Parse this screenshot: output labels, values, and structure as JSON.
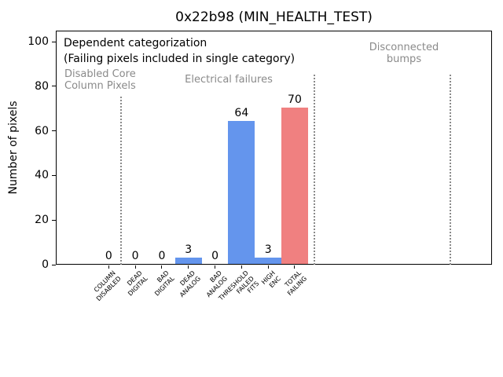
{
  "chart_data": {
    "type": "bar",
    "title": "0x22b98 (MIN_HEALTH_TEST)",
    "ylabel": "Number of pixels",
    "xlabel": "",
    "ylim": [
      0,
      105
    ],
    "yticks": [
      0,
      20,
      40,
      60,
      80,
      100
    ],
    "grid": false,
    "legend_position": "none",
    "categories": [
      "COLUMN\nDISABLED",
      "DEAD\nDIGITAL",
      "BAD\nDIGITAL",
      "DEAD\nANALOG",
      "BAD\nANALOG",
      "THRESHOLD\nFAILED\nFITS",
      "HIGH\nENC",
      "TOTAL\nFAILING"
    ],
    "values": [
      0,
      0,
      0,
      3,
      0,
      64,
      3,
      70
    ],
    "bar_labels": [
      "0",
      "0",
      "0",
      "3",
      "0",
      "64",
      "3",
      "70"
    ],
    "bar_colors": [
      "#6495ed",
      "#6495ed",
      "#6495ed",
      "#6495ed",
      "#6495ed",
      "#6495ed",
      "#6495ed",
      "#f08080"
    ],
    "annotations": {
      "heading": "Dependent categorization\n(Failing pixels included in single category)",
      "region_disabled_core": "Disabled Core\nColumn Pixels",
      "region_electrical": "Electrical failures",
      "region_disconnected": "Disconnected\nbumps"
    },
    "colors": {
      "bar_blue": "#6495ed",
      "bar_red": "#f08080",
      "annotation_gray": "#8a8a8a",
      "separator_gray": "#8a8a8a"
    }
  }
}
